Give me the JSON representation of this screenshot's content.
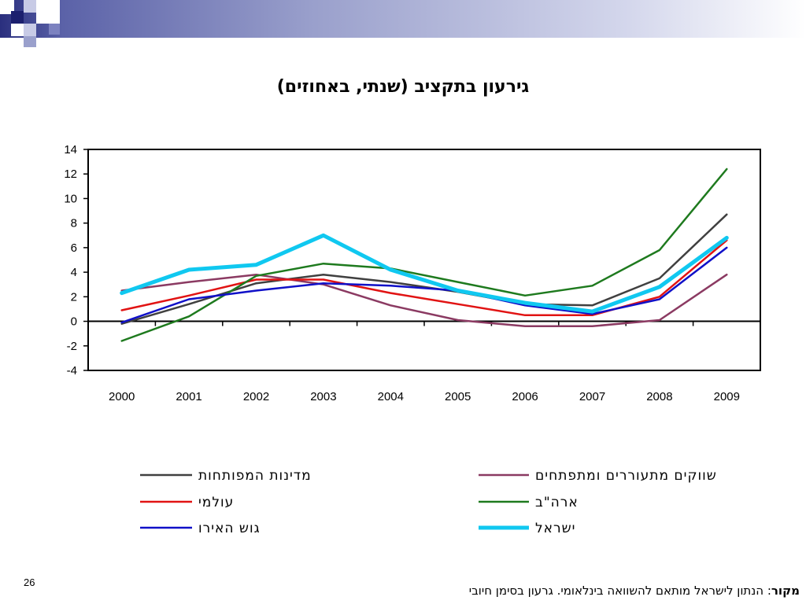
{
  "slide": {
    "title": "גירעון בתקציב (שנתי, באחוזים)",
    "page_number": "26",
    "source_label": "מקור",
    "source_text": ": הנתון לישראל מותאם להשוואה בינלאומי. גרעון בסימן חיובי"
  },
  "chart_data": {
    "type": "line",
    "title": "גירעון בתקציב (שנתי, באחוזים)",
    "categories": [
      "2000",
      "2001",
      "2002",
      "2003",
      "2004",
      "2005",
      "2006",
      "2007",
      "2008",
      "2009"
    ],
    "ylim": [
      -4,
      14
    ],
    "yticks": [
      "14",
      "12",
      "10",
      "8",
      "6",
      "4",
      "2",
      "0",
      "-2",
      "-4"
    ],
    "grid": false,
    "legend_position": "bottom",
    "series": [
      {
        "name": "מדינות המפותחות",
        "color": "#404040",
        "width": 2.5,
        "values": [
          -0.2,
          1.4,
          3.1,
          3.8,
          3.2,
          2.4,
          1.4,
          1.3,
          3.5,
          8.7
        ]
      },
      {
        "name": "שווקים מתעוררים ומתפתחים",
        "color": "#8b3a62",
        "width": 2.5,
        "values": [
          2.5,
          3.2,
          3.8,
          3.0,
          1.3,
          0.1,
          -0.4,
          -0.4,
          0.1,
          3.8
        ]
      },
      {
        "name": "עולמי",
        "color": "#e11313",
        "width": 2.5,
        "values": [
          0.9,
          2.1,
          3.4,
          3.4,
          2.3,
          1.4,
          0.5,
          0.5,
          2.0,
          6.6
        ]
      },
      {
        "name": "ארה\"ב",
        "color": "#1e7a1e",
        "width": 2.5,
        "values": [
          -1.6,
          0.4,
          3.7,
          4.7,
          4.3,
          3.2,
          2.1,
          2.9,
          5.8,
          12.4
        ]
      },
      {
        "name": "גוש האירו",
        "color": "#1010c8",
        "width": 2.5,
        "values": [
          -0.1,
          1.8,
          2.5,
          3.1,
          2.9,
          2.5,
          1.3,
          0.6,
          1.8,
          6.0
        ]
      },
      {
        "name": "ישראל",
        "color": "#10c8f0",
        "width": 5,
        "values": [
          2.3,
          4.2,
          4.6,
          7.0,
          4.2,
          2.5,
          1.5,
          0.8,
          2.8,
          6.8
        ]
      }
    ]
  }
}
